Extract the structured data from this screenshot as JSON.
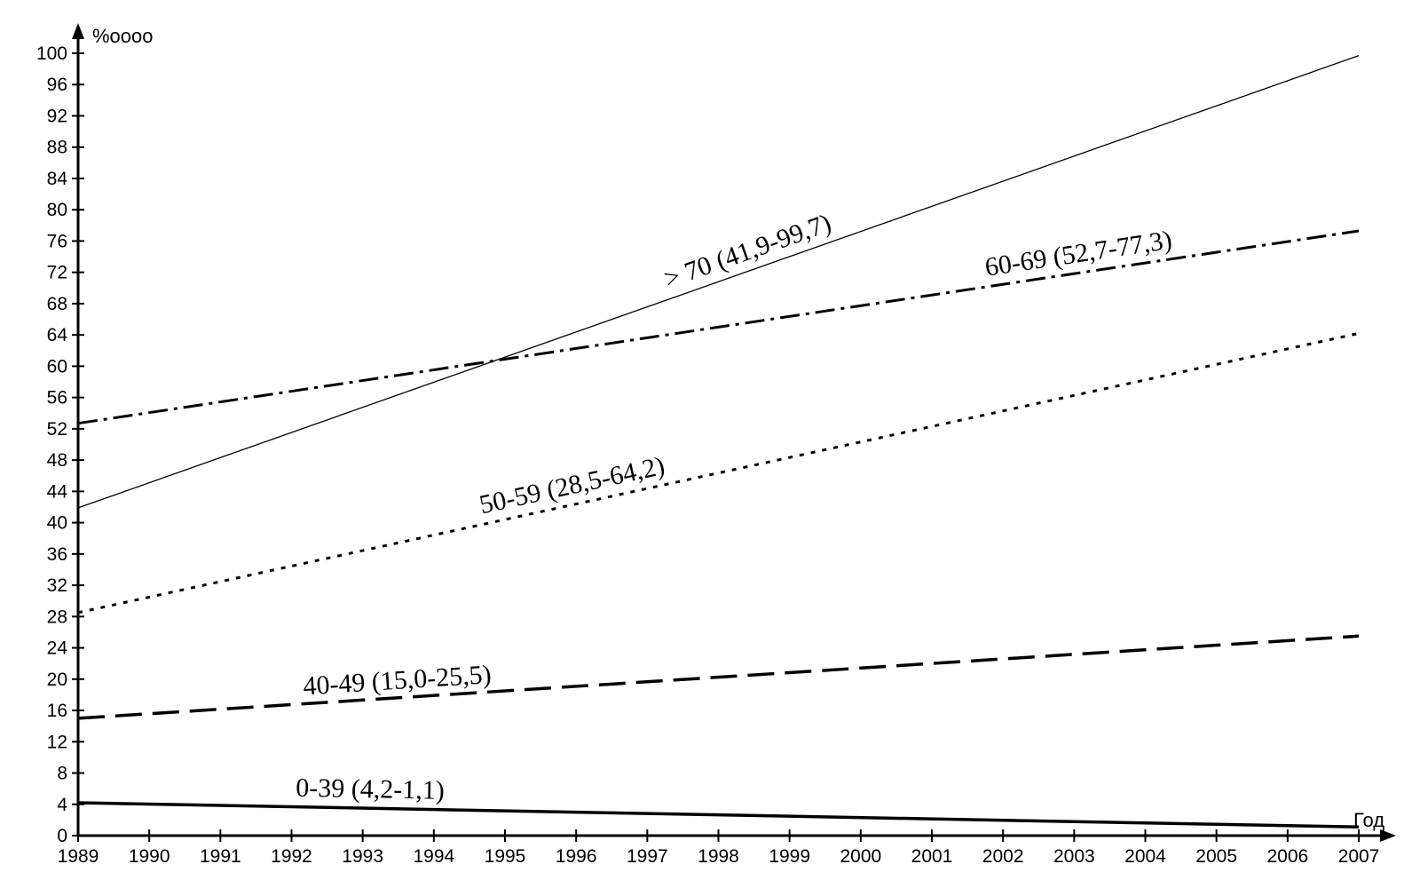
{
  "chart_data": {
    "type": "line",
    "ylabel": "%oooo",
    "xlabel": "Год",
    "xlim": [
      1989,
      2007
    ],
    "ylim": [
      0,
      100
    ],
    "x_ticks": [
      1989,
      1990,
      1991,
      1992,
      1993,
      1994,
      1995,
      1996,
      1997,
      1998,
      1999,
      2000,
      2001,
      2002,
      2003,
      2004,
      2005,
      2006,
      2007
    ],
    "y_ticks": [
      0,
      4,
      8,
      12,
      16,
      20,
      24,
      28,
      32,
      36,
      40,
      44,
      48,
      52,
      56,
      60,
      64,
      68,
      72,
      76,
      80,
      84,
      88,
      92,
      96,
      100
    ],
    "grid": false,
    "series": [
      {
        "name": "> 70 (41,9-99,7)",
        "x": [
          1989,
          2007
        ],
        "y": [
          41.9,
          99.7
        ],
        "style": "solid-thin",
        "color": "#000000"
      },
      {
        "name": "60-69 (52,7-77,3)",
        "x": [
          1989,
          2007
        ],
        "y": [
          52.7,
          77.3
        ],
        "style": "dash-dot",
        "color": "#000000"
      },
      {
        "name": "50-59 (28,5-64,2)",
        "x": [
          1989,
          2007
        ],
        "y": [
          28.5,
          64.2
        ],
        "style": "dotted",
        "color": "#000000"
      },
      {
        "name": "40-49 (15,0-25,5)",
        "x": [
          1989,
          2007
        ],
        "y": [
          15.0,
          25.5
        ],
        "style": "dashed",
        "color": "#000000"
      },
      {
        "name": "0-39 (4,2-1,1)",
        "x": [
          1989,
          2007
        ],
        "y": [
          4.2,
          1.1
        ],
        "style": "solid-thick",
        "color": "#000000"
      }
    ]
  }
}
